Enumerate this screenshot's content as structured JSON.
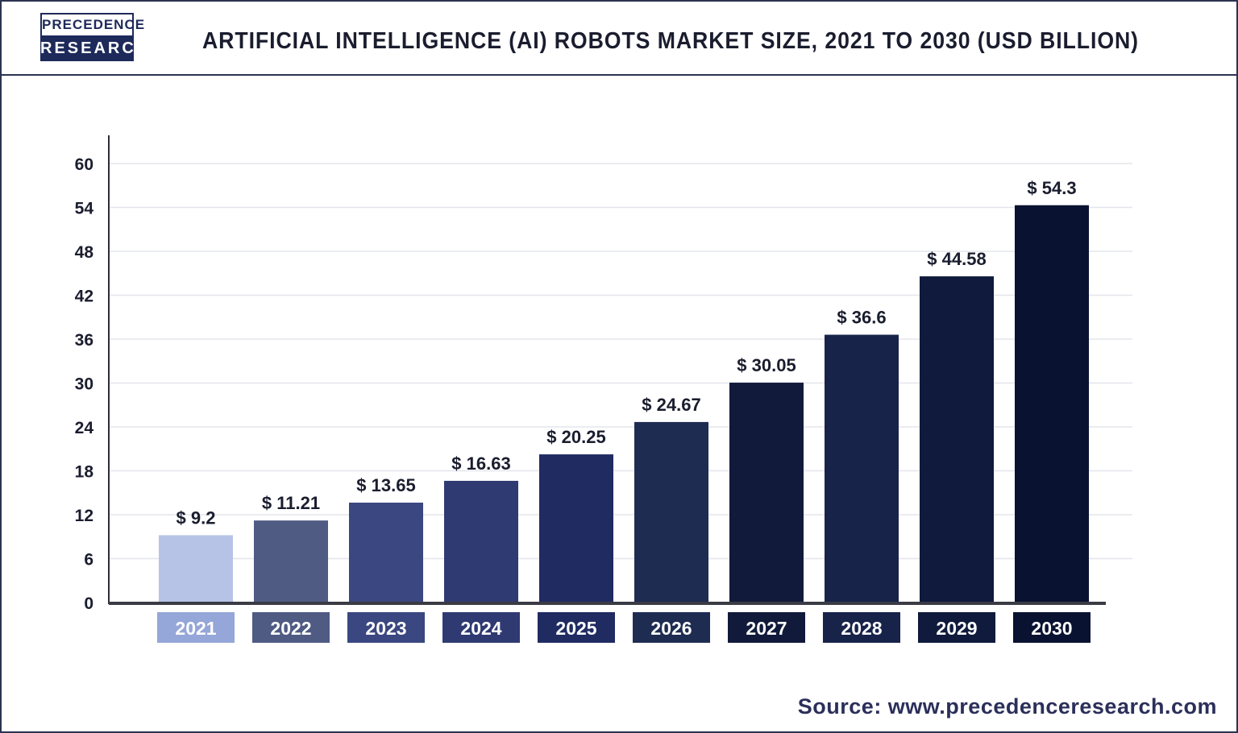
{
  "header": {
    "logo_line1": "PRECEDENCE",
    "logo_line2": "RESEARCH",
    "title": "ARTIFICIAL INTELLIGENCE (AI) ROBOTS MARKET SIZE, 2021 TO 2030 (USD BILLION)"
  },
  "source": "Source: www.precedenceresearch.com",
  "colors": {
    "brand": "#1d2a5a",
    "bar_colors": [
      "#b7c3e6",
      "#4f5b83",
      "#3a4780",
      "#2f3a72",
      "#202b62",
      "#1f2c52",
      "#111a3a",
      "#18234a",
      "#0f1a3c",
      "#0a1232"
    ],
    "year_box_colors": [
      "#95a6d8",
      "#4f5b83",
      "#3a4780",
      "#2f3a72",
      "#202b62",
      "#1f2c52",
      "#111a3a",
      "#18234a",
      "#0f1a3c",
      "#0a1232"
    ]
  },
  "chart_data": {
    "type": "bar",
    "title": "ARTIFICIAL INTELLIGENCE (AI) ROBOTS MARKET SIZE, 2021 TO 2030 (USD BILLION)",
    "categories": [
      "2021",
      "2022",
      "2023",
      "2024",
      "2025",
      "2026",
      "2027",
      "2028",
      "2029",
      "2030"
    ],
    "values": [
      9.2,
      11.21,
      13.65,
      16.63,
      20.25,
      24.67,
      30.05,
      36.6,
      44.58,
      54.3
    ],
    "value_labels": [
      "$ 9.2",
      "$ 11.21",
      "$ 13.65",
      "$ 16.63",
      "$ 20.25",
      "$ 24.67",
      "$ 30.05",
      "$ 36.6",
      "$ 44.58",
      "$ 54.3"
    ],
    "yticks": [
      "0",
      "6",
      "12",
      "18",
      "24",
      "30",
      "36",
      "42",
      "48",
      "54",
      "60"
    ],
    "ylim": [
      0,
      60
    ],
    "xlabel": "",
    "ylabel": "",
    "grid": true
  }
}
